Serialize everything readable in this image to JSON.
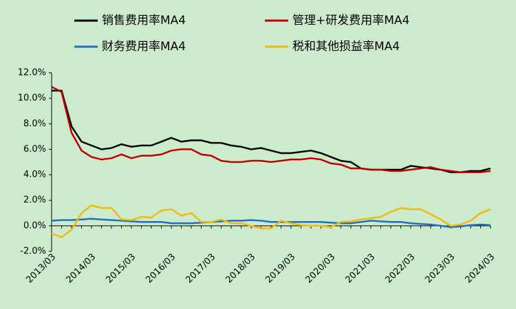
{
  "chart_data": {
    "type": "line",
    "categories": [
      "2013/03",
      null,
      null,
      null,
      "2014/03",
      null,
      null,
      null,
      "2015/03",
      null,
      null,
      null,
      "2016/03",
      null,
      null,
      null,
      "2017/03",
      null,
      null,
      null,
      "2018/03",
      null,
      null,
      null,
      "2019/03",
      null,
      null,
      null,
      "2020/03",
      null,
      null,
      null,
      "2021/03",
      null,
      null,
      null,
      "2022/03",
      null,
      null,
      null,
      "2023/03",
      null,
      null,
      null,
      "2024/03"
    ],
    "series": [
      {
        "name": "销售费用率MA4",
        "color": "#000000",
        "values": [
          10.6,
          10.6,
          7.8,
          6.6,
          6.3,
          6.0,
          6.1,
          6.4,
          6.2,
          6.3,
          6.3,
          6.6,
          6.9,
          6.6,
          6.7,
          6.7,
          6.5,
          6.5,
          6.3,
          6.2,
          6.0,
          6.1,
          5.9,
          5.7,
          5.7,
          5.8,
          5.9,
          5.7,
          5.4,
          5.1,
          5.0,
          4.5,
          4.4,
          4.4,
          4.4,
          4.4,
          4.7,
          4.6,
          4.5,
          4.4,
          4.2,
          4.2,
          4.3,
          4.3,
          4.5
        ]
      },
      {
        "name": "管理+研发费用率MA4",
        "color": "#c00000",
        "values": [
          10.9,
          10.5,
          7.3,
          5.9,
          5.4,
          5.2,
          5.3,
          5.6,
          5.3,
          5.5,
          5.5,
          5.6,
          5.9,
          6.0,
          6.0,
          5.6,
          5.5,
          5.1,
          5.0,
          5.0,
          5.1,
          5.1,
          5.0,
          5.1,
          5.2,
          5.2,
          5.3,
          5.2,
          4.9,
          4.8,
          4.5,
          4.5,
          4.4,
          4.4,
          4.3,
          4.3,
          4.4,
          4.5,
          4.6,
          4.4,
          4.3,
          4.2,
          4.2,
          4.2,
          4.3
        ]
      },
      {
        "name": "财务费用率MA4",
        "color": "#1f6fbf",
        "values": [
          0.4,
          0.45,
          0.45,
          0.5,
          0.55,
          0.5,
          0.45,
          0.4,
          0.35,
          0.3,
          0.3,
          0.3,
          0.2,
          0.2,
          0.2,
          0.25,
          0.3,
          0.35,
          0.4,
          0.4,
          0.45,
          0.4,
          0.3,
          0.3,
          0.3,
          0.3,
          0.3,
          0.3,
          0.25,
          0.2,
          0.2,
          0.3,
          0.4,
          0.35,
          0.3,
          0.3,
          0.2,
          0.15,
          0.1,
          0.0,
          -0.1,
          -0.05,
          0.05,
          0.1,
          0.05
        ]
      },
      {
        "name": "税和其他损益率MA4",
        "color": "#f2b90f",
        "values": [
          -0.6,
          -0.9,
          -0.3,
          1.0,
          1.6,
          1.4,
          1.4,
          0.5,
          0.45,
          0.7,
          0.65,
          1.2,
          1.3,
          0.8,
          1.0,
          0.3,
          0.3,
          0.5,
          0.2,
          0.2,
          0.0,
          -0.2,
          -0.2,
          0.4,
          0.2,
          0.05,
          0.0,
          0.0,
          -0.1,
          0.3,
          0.35,
          0.5,
          0.6,
          0.7,
          1.1,
          1.4,
          1.3,
          1.3,
          0.9,
          0.5,
          0.0,
          0.1,
          0.4,
          1.0,
          1.3
        ]
      }
    ],
    "ylim": [
      -2,
      12
    ],
    "yticks": [
      {
        "value": -2,
        "label": "-2.0%"
      },
      {
        "value": 0,
        "label": "0.0%"
      },
      {
        "value": 2,
        "label": "2.0%"
      },
      {
        "value": 4,
        "label": "4.0%"
      },
      {
        "value": 6,
        "label": "6.0%"
      },
      {
        "value": 8,
        "label": "8.0%"
      },
      {
        "value": 10,
        "label": "10.0%"
      },
      {
        "value": 12,
        "label": "12.0%"
      }
    ],
    "grid": false,
    "legend": "top"
  }
}
